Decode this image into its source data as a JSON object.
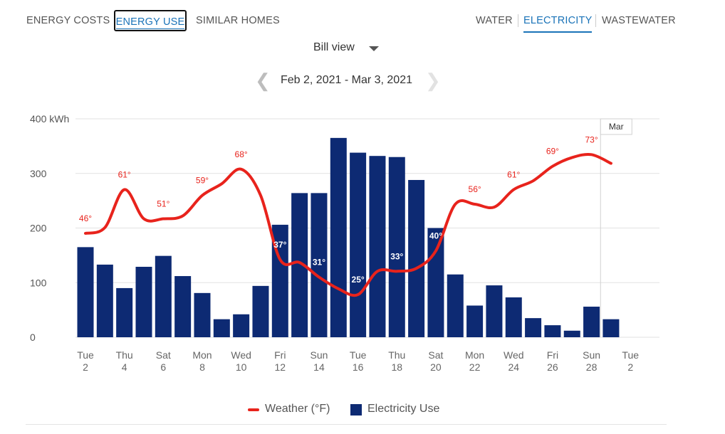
{
  "tabs": {
    "energy_costs": "ENERGY COSTS",
    "energy_use": "ENERGY USE",
    "similar_homes": "SIMILAR HOMES"
  },
  "utilities": {
    "water": "WATER",
    "electricity": "ELECTRICITY",
    "wastewater": "WASTEWATER"
  },
  "view_select": {
    "value": "Bill view"
  },
  "date_range": "Feb 2, 2021 - Mar 3, 2021",
  "colors": {
    "bar": "#0d2a73",
    "weather": "#e8231c",
    "accent": "#1a73b8"
  },
  "legend": {
    "weather": "Weather (°F)",
    "usage": "Electricity Use"
  },
  "chart_data": {
    "type": "bar",
    "ylabel": "kWh",
    "ylim": [
      0,
      400
    ],
    "y_ticks": [
      {
        "value": 0,
        "label": "0"
      },
      {
        "value": 100,
        "label": "100"
      },
      {
        "value": 200,
        "label": "200"
      },
      {
        "value": 300,
        "label": "300"
      },
      {
        "value": 400,
        "label": "400 kWh"
      }
    ],
    "grid": true,
    "x_ticks": [
      {
        "day_index": 0,
        "weekday": "Tue",
        "day": "2"
      },
      {
        "day_index": 2,
        "weekday": "Thu",
        "day": "4"
      },
      {
        "day_index": 4,
        "weekday": "Sat",
        "day": "6"
      },
      {
        "day_index": 6,
        "weekday": "Mon",
        "day": "8"
      },
      {
        "day_index": 8,
        "weekday": "Wed",
        "day": "10"
      },
      {
        "day_index": 10,
        "weekday": "Fri",
        "day": "12"
      },
      {
        "day_index": 12,
        "weekday": "Sun",
        "day": "14"
      },
      {
        "day_index": 14,
        "weekday": "Tue",
        "day": "16"
      },
      {
        "day_index": 16,
        "weekday": "Thu",
        "day": "18"
      },
      {
        "day_index": 18,
        "weekday": "Sat",
        "day": "20"
      },
      {
        "day_index": 20,
        "weekday": "Mon",
        "day": "22"
      },
      {
        "day_index": 22,
        "weekday": "Wed",
        "day": "24"
      },
      {
        "day_index": 24,
        "weekday": "Fri",
        "day": "26"
      },
      {
        "day_index": 26,
        "weekday": "Sun",
        "day": "28"
      },
      {
        "day_index": 28,
        "weekday": "Tue",
        "day": "2"
      }
    ],
    "electricity_use": [
      165,
      133,
      90,
      129,
      149,
      112,
      81,
      33,
      42,
      94,
      206,
      264,
      264,
      365,
      338,
      332,
      330,
      288,
      200,
      115,
      58,
      95,
      73,
      35,
      22,
      12,
      56,
      33
    ],
    "weather_f": [
      46,
      48,
      61,
      51,
      51,
      52,
      59,
      63,
      68,
      59,
      37,
      36,
      31,
      27,
      25,
      33,
      33,
      34,
      40,
      56,
      56,
      55,
      61,
      64,
      69,
      72,
      73,
      70
    ],
    "weather_labels": [
      {
        "day_index": 0,
        "text": "46°"
      },
      {
        "day_index": 2,
        "text": "61°"
      },
      {
        "day_index": 4,
        "text": "51°"
      },
      {
        "day_index": 6,
        "text": "59°"
      },
      {
        "day_index": 8,
        "text": "68°"
      },
      {
        "day_index": 10,
        "text": "37°"
      },
      {
        "day_index": 12,
        "text": "31°"
      },
      {
        "day_index": 14,
        "text": "25°"
      },
      {
        "day_index": 16,
        "text": "33°"
      },
      {
        "day_index": 18,
        "text": "40°"
      },
      {
        "day_index": 20,
        "text": "56°"
      },
      {
        "day_index": 22,
        "text": "61°"
      },
      {
        "day_index": 24,
        "text": "69°"
      },
      {
        "day_index": 26,
        "text": "73°"
      }
    ],
    "month_marker": {
      "day_index": 27,
      "label": "Mar"
    }
  }
}
